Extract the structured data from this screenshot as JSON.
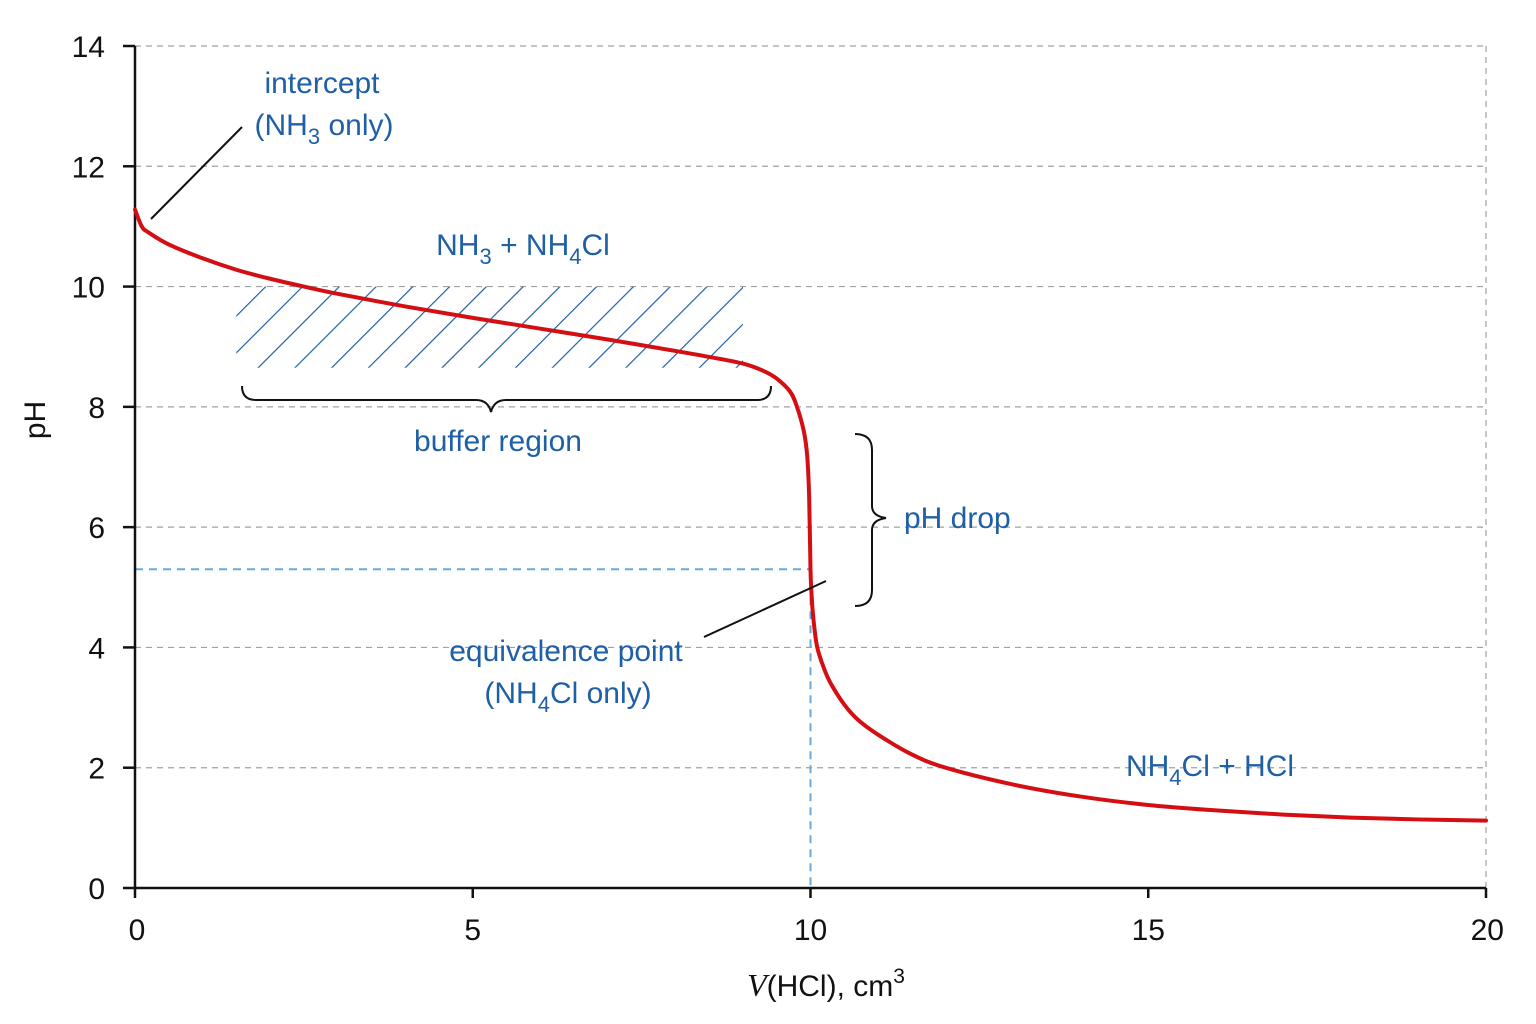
{
  "chart_data": {
    "type": "line",
    "xlabel_italic": "V",
    "xlabel_rest": "(HCl), cm",
    "xlabel_sup": "3",
    "ylabel": "pH",
    "xlim": [
      0,
      20
    ],
    "ylim": [
      0,
      14
    ],
    "x_ticks": [
      0,
      5,
      10,
      15,
      20
    ],
    "y_ticks": [
      0,
      2,
      4,
      6,
      8,
      10,
      12,
      14
    ],
    "grid": "horizontal dashed",
    "line_color": "#d40f14",
    "annotation_color": "#1f5fa6",
    "guide_color": "#6aaad8",
    "series": [
      {
        "x": [
          0,
          0.1,
          0.2,
          0.5,
          1,
          1.5,
          2,
          2.5,
          3,
          4,
          5,
          6,
          7,
          8,
          8.5,
          9,
          9.3,
          9.5,
          9.7,
          9.8,
          9.9,
          9.95,
          9.98,
          10,
          10.02,
          10.05,
          10.1,
          10.2,
          10.3,
          10.5,
          10.7,
          11,
          11.5,
          12,
          13,
          14,
          15,
          16,
          17,
          18,
          19,
          20
        ],
        "y": [
          11.28,
          11.0,
          10.9,
          10.7,
          10.47,
          10.28,
          10.13,
          10.0,
          9.88,
          9.67,
          9.48,
          9.3,
          9.12,
          8.93,
          8.83,
          8.72,
          8.6,
          8.47,
          8.25,
          8.0,
          7.6,
          7.2,
          6.5,
          5.3,
          4.8,
          4.4,
          4.0,
          3.65,
          3.4,
          3.05,
          2.8,
          2.55,
          2.22,
          2.0,
          1.72,
          1.52,
          1.38,
          1.29,
          1.22,
          1.17,
          1.14,
          1.12
        ]
      }
    ],
    "equivalence": {
      "x": 10,
      "y": 5.3
    },
    "buffer_region": {
      "x_range": [
        1.5,
        9
      ],
      "y_range": [
        8.65,
        10
      ]
    },
    "ph_drop_range": [
      4.7,
      7.6
    ],
    "annotations": {
      "intercept_line1": "intercept",
      "intercept_line2_a": "(NH",
      "intercept_line2_sub": "3",
      "intercept_line2_b": " only)",
      "buffer_a": "NH",
      "buffer_sub1": "3",
      "buffer_b": " + NH",
      "buffer_sub2": "4",
      "buffer_c": "Cl",
      "buffer_region_label": "buffer region",
      "ph_drop_label": "pH drop",
      "equiv_line1": "equivalence point",
      "equiv_line2_a": "(NH",
      "equiv_line2_sub": "4",
      "equiv_line2_b": "Cl only)",
      "excess_a": "NH",
      "excess_sub": "4",
      "excess_b": "Cl + HCl"
    }
  }
}
